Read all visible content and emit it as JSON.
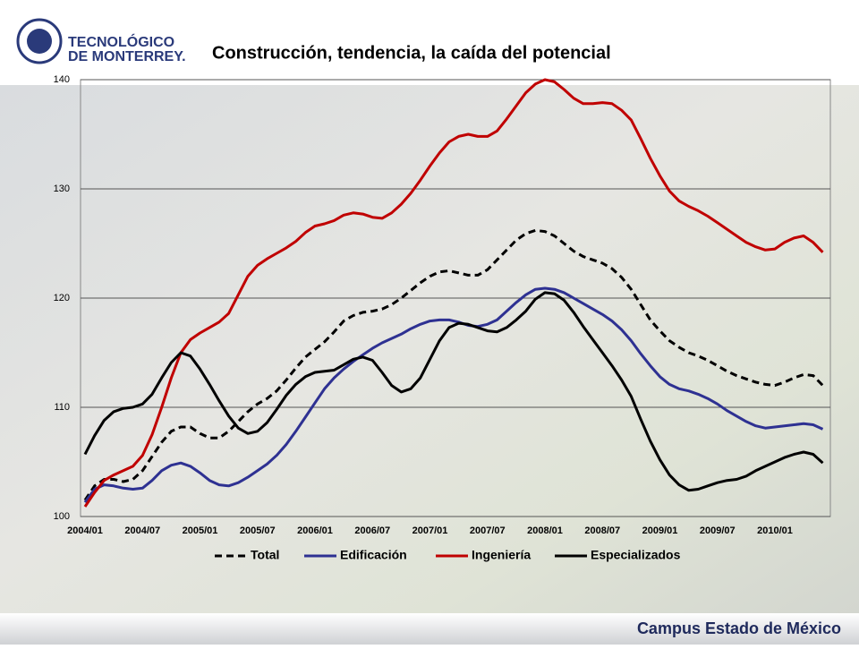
{
  "header": {
    "logo_line1": "TECNOLÓGICO",
    "logo_line2": "DE MONTERREY."
  },
  "footer": "Campus Estado de México",
  "chart_data": {
    "type": "line",
    "title": "Construcción, tendencia, la caída del potencial",
    "categories": [
      "2004/01",
      null,
      null,
      null,
      null,
      null,
      "2004/07",
      null,
      null,
      null,
      null,
      null,
      "2005/01",
      null,
      null,
      null,
      null,
      null,
      "2005/07",
      null,
      null,
      null,
      null,
      null,
      "2006/01",
      null,
      null,
      null,
      null,
      null,
      "2006/07",
      null,
      null,
      null,
      null,
      null,
      "2007/01",
      null,
      null,
      null,
      null,
      null,
      "2007/07",
      null,
      null,
      null,
      null,
      null,
      "2008/01",
      null,
      null,
      null,
      null,
      null,
      "2008/07",
      null,
      null,
      null,
      null,
      null,
      "2009/01",
      null,
      null,
      null,
      null,
      null,
      "2009/07",
      null,
      null,
      null,
      null,
      null,
      "2010/01",
      null,
      null,
      null,
      null,
      null
    ],
    "ylim": [
      100,
      140
    ],
    "yticks": [
      100,
      110,
      120,
      130,
      140
    ],
    "grid": true,
    "legend": "bottom",
    "series": [
      {
        "name": "Total",
        "color": "#000000",
        "dashed": true,
        "values": [
          101.5,
          102.8,
          103.4,
          103.4,
          103.2,
          103.4,
          104.2,
          105.5,
          106.8,
          107.8,
          108.2,
          108.2,
          107.6,
          107.2,
          107.2,
          107.8,
          108.7,
          109.6,
          110.3,
          110.8,
          111.5,
          112.5,
          113.6,
          114.6,
          115.3,
          116,
          116.9,
          117.9,
          118.4,
          118.7,
          118.8,
          119,
          119.4,
          120,
          120.7,
          121.4,
          122,
          122.4,
          122.5,
          122.3,
          122.1,
          122.1,
          122.6,
          123.5,
          124.4,
          125.3,
          125.9,
          126.2,
          126.1,
          125.7,
          125,
          124.3,
          123.8,
          123.5,
          123.2,
          122.7,
          121.9,
          120.8,
          119.4,
          118,
          117,
          116.1,
          115.5,
          115,
          114.7,
          114.3,
          113.8,
          113.3,
          112.9,
          112.6,
          112.3,
          112.1,
          112,
          112.3,
          112.7,
          113,
          112.9,
          112
        ]
      },
      {
        "name": "Edificación",
        "color": "#2e3192",
        "dashed": false,
        "values": [
          101.3,
          102.5,
          102.9,
          102.8,
          102.6,
          102.5,
          102.6,
          103.3,
          104.2,
          104.7,
          104.9,
          104.6,
          104,
          103.3,
          102.9,
          102.8,
          103.1,
          103.6,
          104.2,
          104.8,
          105.6,
          106.6,
          107.8,
          109.1,
          110.4,
          111.7,
          112.7,
          113.5,
          114.2,
          114.8,
          115.4,
          115.9,
          116.3,
          116.7,
          117.2,
          117.6,
          117.9,
          118,
          118,
          117.8,
          117.5,
          117.4,
          117.6,
          118,
          118.8,
          119.6,
          120.3,
          120.8,
          120.9,
          120.8,
          120.5,
          120,
          119.5,
          119,
          118.5,
          117.9,
          117.1,
          116.1,
          114.9,
          113.8,
          112.8,
          112.1,
          111.7,
          111.5,
          111.2,
          110.8,
          110.3,
          109.7,
          109.2,
          108.7,
          108.3,
          108.1,
          108.2,
          108.3,
          108.4,
          108.5,
          108.4,
          108
        ]
      },
      {
        "name": "Ingeniería",
        "color": "#c00000",
        "dashed": false,
        "values": [
          100.9,
          102.2,
          103.3,
          103.8,
          104.2,
          104.6,
          105.6,
          107.5,
          110,
          112.7,
          115,
          116.2,
          116.8,
          117.3,
          117.8,
          118.6,
          120.3,
          122,
          123,
          123.6,
          124.1,
          124.6,
          125.2,
          126,
          126.6,
          126.8,
          127.1,
          127.6,
          127.8,
          127.7,
          127.4,
          127.3,
          127.8,
          128.6,
          129.6,
          130.8,
          132.1,
          133.3,
          134.3,
          134.8,
          135,
          134.8,
          134.8,
          135.3,
          136.4,
          137.6,
          138.8,
          139.6,
          140,
          139.8,
          139.1,
          138.3,
          137.8,
          137.8,
          137.9,
          137.8,
          137.2,
          136.3,
          134.6,
          132.8,
          131.2,
          129.8,
          128.9,
          128.4,
          128,
          127.5,
          126.9,
          126.3,
          125.7,
          125.1,
          124.7,
          124.4,
          124.5,
          125.1,
          125.5,
          125.7,
          125.1,
          124.2
        ]
      },
      {
        "name": "Especializados",
        "color": "#000000",
        "dashed": false,
        "values": [
          105.7,
          107.4,
          108.8,
          109.6,
          109.9,
          110,
          110.3,
          111.2,
          112.7,
          114.1,
          115,
          114.7,
          113.5,
          112.1,
          110.6,
          109.2,
          108.1,
          107.6,
          107.8,
          108.6,
          109.8,
          111.1,
          112.1,
          112.8,
          113.2,
          113.3,
          113.4,
          113.9,
          114.4,
          114.6,
          114.3,
          113.2,
          112,
          111.4,
          111.7,
          112.7,
          114.4,
          116.1,
          117.3,
          117.7,
          117.6,
          117.3,
          117,
          116.9,
          117.3,
          118,
          118.8,
          119.9,
          120.5,
          120.4,
          119.8,
          118.7,
          117.4,
          116.2,
          115,
          113.8,
          112.5,
          111,
          108.9,
          106.9,
          105.2,
          103.8,
          102.9,
          102.4,
          102.5,
          102.8,
          103.1,
          103.3,
          103.4,
          103.7,
          104.2,
          104.6,
          105,
          105.4,
          105.7,
          105.9,
          105.7,
          104.9
        ]
      }
    ]
  }
}
